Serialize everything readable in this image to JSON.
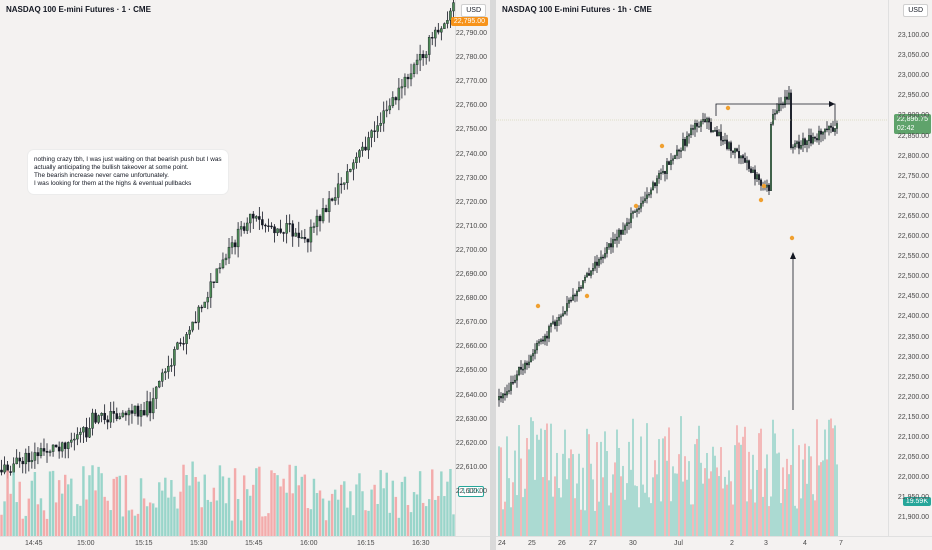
{
  "left_chart": {
    "title": "NASDAQ 100 E-mini Futures · 1 · CME",
    "currency": "USD",
    "current_price_label": "22,795.00",
    "volume_label": "1.12K",
    "price_ticks": [
      "22,790.00",
      "22,780.00",
      "22,770.00",
      "22,760.00",
      "22,750.00",
      "22,740.00",
      "22,730.00",
      "22,720.00",
      "22,710.00",
      "22,700.00",
      "22,690.00",
      "22,680.00",
      "22,670.00",
      "22,660.00",
      "22,650.00",
      "22,640.00",
      "22,630.00",
      "22,620.00",
      "22,610.00",
      "22,600.00"
    ],
    "time_ticks": [
      "14:45",
      "15:00",
      "15:15",
      "15:30",
      "15:45",
      "16:00",
      "16:15",
      "16:30"
    ],
    "note_lines": [
      "nothing crazy tbh, I was just waiting on that bearish push but I was",
      "actually anticipating the bullish takeover at some point.",
      "The bearish increase never came unfortunately.",
      "I was looking for them at the highs & eventual pullbacks"
    ]
  },
  "right_chart": {
    "title": "NASDAQ 100 E-mini Futures · 1h · CME",
    "currency": "USD",
    "current_price_label": "22,896.75",
    "countdown_label": "02:42",
    "volume_label": "19.59K",
    "price_ticks": [
      "23,100.00",
      "23,050.00",
      "23,000.00",
      "22,950.00",
      "22,900.00",
      "22,850.00",
      "22,800.00",
      "22,750.00",
      "22,700.00",
      "22,650.00",
      "22,600.00",
      "22,550.00",
      "22,500.00",
      "22,450.00",
      "22,400.00",
      "22,350.00",
      "22,300.00",
      "22,250.00",
      "22,200.00",
      "22,150.00",
      "22,100.00",
      "22,050.00",
      "22,000.00",
      "21,950.00",
      "21,900.00"
    ],
    "time_ticks": [
      "24",
      "25",
      "26",
      "27",
      "30",
      "Jul",
      "2",
      "3",
      "4",
      "7"
    ]
  },
  "colors": {
    "up": "#5b5b5b",
    "down": "#131722",
    "bull_fill": "#3a7d44",
    "vol_up": "#8fd1c5",
    "vol_down": "#f3a3a3",
    "price_badge": "#f7931a",
    "green_badge": "#26a69a"
  }
}
